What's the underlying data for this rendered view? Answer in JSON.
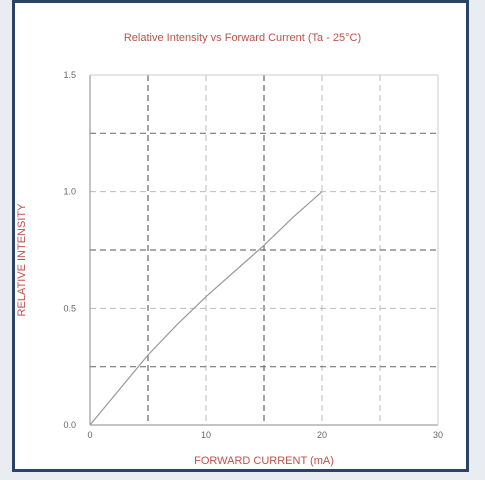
{
  "chart_data": {
    "type": "line",
    "title": "Relative Intensity vs Forward Current (Ta - 25°C)",
    "xlabel": "FORWARD CURRENT (mA)",
    "ylabel": "RELATIVE INTENSITY",
    "xlim": [
      0,
      30
    ],
    "ylim": [
      0,
      1.5
    ],
    "x_ticks": [
      0,
      10,
      20,
      30
    ],
    "y_ticks": [
      0.0,
      0.5,
      1.0,
      1.5
    ],
    "x_tick_labels": [
      "0",
      "10",
      "20",
      "30"
    ],
    "y_tick_labels": [
      "0.0",
      "0.5",
      "1.0",
      "1.5"
    ],
    "grid": true,
    "colors": {
      "line": "#999999",
      "label": "#c0504d",
      "frame": "#2b4466",
      "grid": "#aaaaaa"
    },
    "series": [
      {
        "x": [
          0,
          2.5,
          5,
          7.5,
          10,
          12.5,
          15,
          17.5,
          20
        ],
        "y": [
          0,
          0.15,
          0.3,
          0.43,
          0.55,
          0.66,
          0.77,
          0.89,
          1.0
        ]
      }
    ]
  }
}
